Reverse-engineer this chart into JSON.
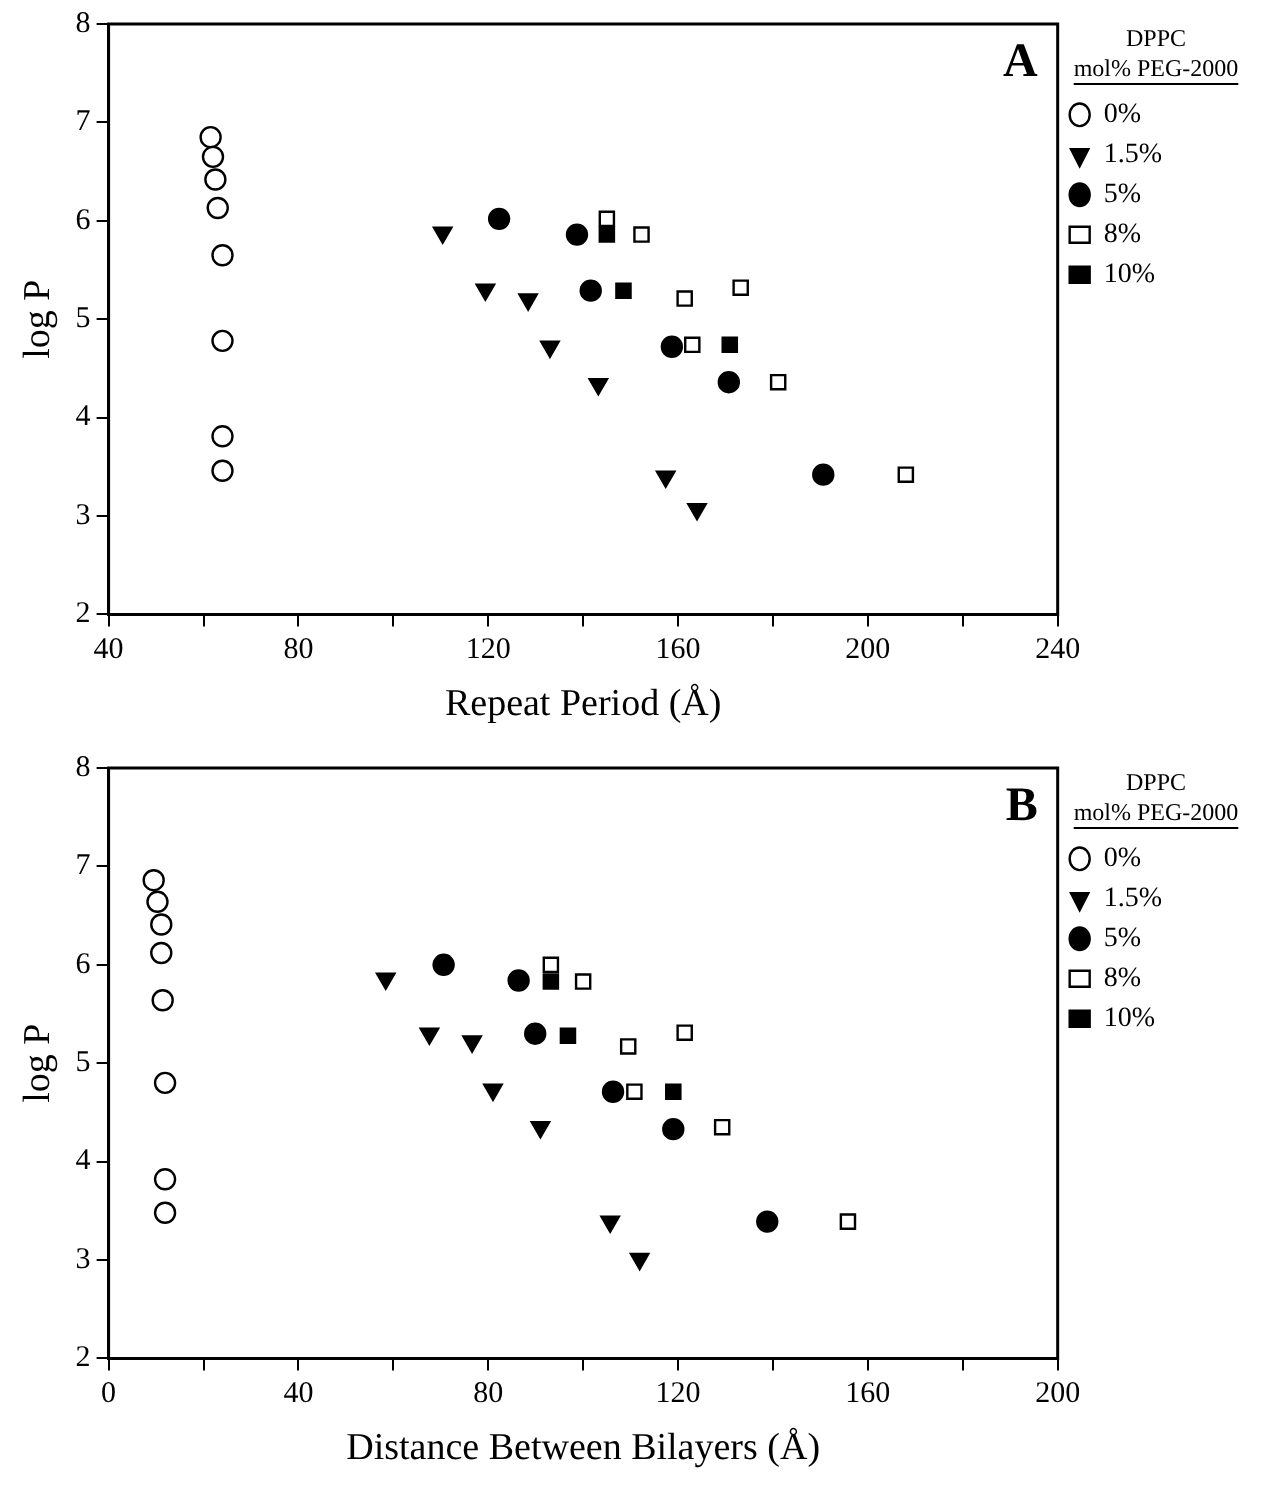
{
  "chart_data": [
    {
      "type": "scatter",
      "xlabel": "Repeat Period (Å)",
      "ylabel": "log P",
      "legend_title": "DPPC mol% PEG-2000",
      "legend": "right",
      "grid": false,
      "annotations": [
        "A"
      ],
      "xlim": [
        40,
        240
      ],
      "xticks": [
        40,
        {
          "value": 60,
          "label": null
        },
        80,
        {
          "value": 100,
          "label": null
        },
        120,
        {
          "value": 140,
          "label": null
        },
        160,
        {
          "value": 180,
          "label": null
        },
        200,
        {
          "value": 220,
          "label": null
        },
        240
      ],
      "ylim": [
        2,
        8
      ],
      "yticks": [
        2,
        3,
        4,
        5,
        6,
        7,
        8
      ],
      "series": [
        {
          "name": "0%",
          "marker": "circle",
          "color": "#ffffff",
          "x": [
            61.5,
            62,
            62.5,
            63,
            64,
            64,
            64,
            64
          ],
          "values": [
            6.85,
            6.65,
            6.42,
            6.13,
            5.65,
            4.78,
            3.81,
            3.46
          ]
        },
        {
          "name": "1.5%",
          "marker": "triangle",
          "color": "#000000",
          "x": [
            110.4,
            119.4,
            128.4,
            133,
            143.2,
            157.4,
            164
          ],
          "values": [
            5.88,
            5.3,
            5.2,
            4.72,
            4.34,
            3.4,
            3.07
          ]
        },
        {
          "name": "5%",
          "marker": "circle",
          "color": "#000000",
          "x": [
            122.3,
            138.7,
            141.6,
            158.7,
            170.7,
            190.6
          ],
          "values": [
            6.02,
            5.86,
            5.29,
            4.72,
            4.36,
            3.42
          ]
        },
        {
          "name": "8%",
          "marker": "square",
          "color": "#ffffff",
          "x": [
            145,
            152.3,
            161.4,
            163,
            173.2,
            181.1,
            208
          ],
          "values": [
            6.02,
            5.86,
            5.21,
            4.74,
            5.32,
            4.36,
            3.42
          ]
        },
        {
          "name": "10%",
          "marker": "square",
          "color": "#000000",
          "x": [
            145,
            148.5,
            170.9
          ],
          "values": [
            5.86,
            5.29,
            4.74
          ]
        }
      ]
    },
    {
      "type": "scatter",
      "xlabel": "Distance Between Bilayers (Å)",
      "ylabel": "log P",
      "legend_title": "DPPC mol% PEG-2000",
      "legend": "right",
      "grid": false,
      "annotations": [
        "B"
      ],
      "xlim": [
        0,
        200
      ],
      "xticks": [
        0,
        {
          "value": 20,
          "label": null
        },
        40,
        {
          "value": 60,
          "label": null
        },
        80,
        {
          "value": 100,
          "label": null
        },
        120,
        {
          "value": 140,
          "label": null
        },
        160,
        {
          "value": 180,
          "label": null
        },
        200
      ],
      "ylim": [
        2,
        8
      ],
      "yticks": [
        2,
        3,
        4,
        5,
        6,
        7,
        8
      ],
      "series": [
        {
          "name": "0%",
          "marker": "circle",
          "color": "#ffffff",
          "x": [
            9.5,
            10.3,
            11.1,
            11.1,
            11.4,
            11.9,
            11.9,
            11.9
          ],
          "values": [
            6.86,
            6.64,
            6.41,
            6.12,
            5.64,
            4.8,
            3.82,
            3.48
          ]
        },
        {
          "name": "1.5%",
          "marker": "triangle",
          "color": "#000000",
          "x": [
            58.4,
            67.6,
            76.6,
            81,
            91,
            105.7,
            111.9
          ],
          "values": [
            5.86,
            5.3,
            5.22,
            4.73,
            4.35,
            3.39,
            3.01
          ]
        },
        {
          "name": "5%",
          "marker": "circle",
          "color": "#000000",
          "x": [
            70.6,
            86.4,
            89.9,
            106.3,
            119,
            138.8
          ],
          "values": [
            6,
            5.84,
            5.3,
            4.71,
            4.33,
            3.39
          ]
        },
        {
          "name": "8%",
          "marker": "square",
          "color": "#ffffff",
          "x": [
            93.2,
            100,
            109.5,
            110.8,
            121.4,
            129.3,
            155.8
          ],
          "values": [
            6,
            5.83,
            5.17,
            4.71,
            5.31,
            4.35,
            3.39
          ]
        },
        {
          "name": "10%",
          "marker": "square",
          "color": "#000000",
          "x": [
            93.2,
            96.8,
            119
          ],
          "values": [
            5.83,
            5.28,
            4.71
          ]
        }
      ]
    }
  ]
}
